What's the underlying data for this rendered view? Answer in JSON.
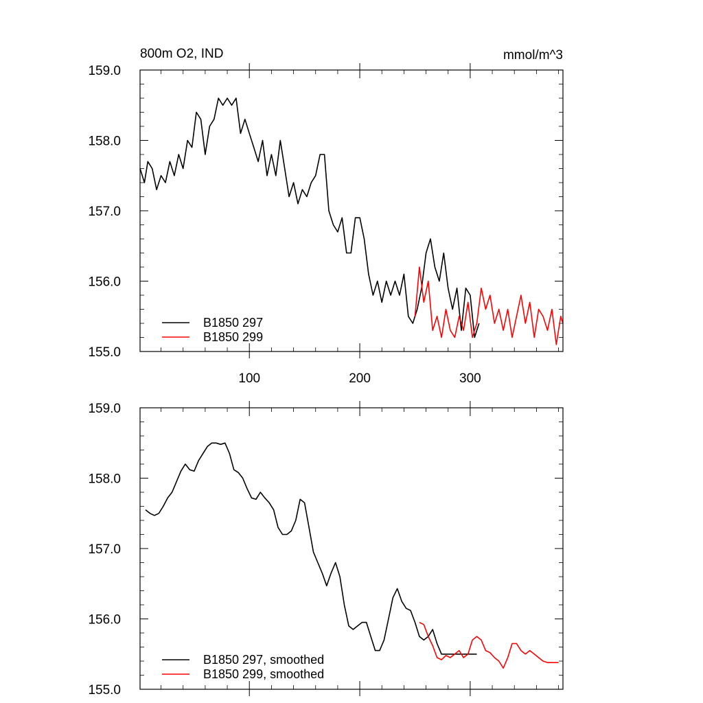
{
  "chart_data": [
    {
      "type": "line",
      "title_left": "800m O2, IND",
      "title_right": "mmol/m^3",
      "xlim": [
        1,
        384
      ],
      "ylim": [
        155.0,
        159.0
      ],
      "xticks": [
        100,
        200,
        300
      ],
      "xtick_labels": [
        "100",
        "200",
        "300"
      ],
      "yticks": [
        155.0,
        156.0,
        157.0,
        158.0,
        159.0
      ],
      "ytick_labels": [
        "155.0",
        "156.0",
        "157.0",
        "158.0",
        "159.0"
      ],
      "legend_position": "bottom-left",
      "series": [
        {
          "name": "B1850 297",
          "color": "#000000",
          "x": [
            1,
            5,
            8,
            12,
            16,
            20,
            24,
            28,
            32,
            36,
            40,
            44,
            48,
            52,
            56,
            60,
            64,
            68,
            72,
            76,
            80,
            84,
            88,
            92,
            96,
            100,
            104,
            108,
            112,
            116,
            120,
            124,
            128,
            132,
            136,
            140,
            144,
            148,
            152,
            156,
            160,
            164,
            168,
            172,
            176,
            180,
            184,
            188,
            192,
            196,
            200,
            204,
            208,
            212,
            216,
            220,
            224,
            228,
            232,
            236,
            240,
            244,
            248,
            252,
            256,
            260,
            264,
            268,
            272,
            276,
            280,
            284,
            288,
            292,
            296,
            300,
            304,
            308
          ],
          "y": [
            157.6,
            157.4,
            157.7,
            157.6,
            157.3,
            157.5,
            157.4,
            157.7,
            157.5,
            157.8,
            157.6,
            158.0,
            157.9,
            158.4,
            158.3,
            157.8,
            158.2,
            158.3,
            158.6,
            158.5,
            158.6,
            158.5,
            158.6,
            158.1,
            158.3,
            158.1,
            157.9,
            157.7,
            158.0,
            157.5,
            157.8,
            157.5,
            158.0,
            157.6,
            157.2,
            157.4,
            157.1,
            157.3,
            157.2,
            157.4,
            157.5,
            157.8,
            157.8,
            157.0,
            156.8,
            156.7,
            156.9,
            156.4,
            156.4,
            156.9,
            156.9,
            156.6,
            156.1,
            155.8,
            156.0,
            155.7,
            156.0,
            155.8,
            156.0,
            155.8,
            156.1,
            155.5,
            155.4,
            155.6,
            155.9,
            156.4,
            156.6,
            156.2,
            156.0,
            156.4,
            155.9,
            155.6,
            155.9,
            155.3,
            155.9,
            155.8,
            155.2,
            155.4
          ]
        },
        {
          "name": "B1850 299",
          "color": "#ff0000",
          "x": [
            250,
            254,
            258,
            262,
            266,
            270,
            274,
            278,
            282,
            286,
            290,
            294,
            298,
            302,
            306,
            310,
            314,
            318,
            322,
            326,
            330,
            334,
            338,
            342,
            346,
            350,
            354,
            358,
            362,
            366,
            370,
            374,
            378,
            382,
            384
          ],
          "y": [
            155.5,
            156.2,
            155.7,
            156.0,
            155.3,
            155.5,
            155.2,
            155.6,
            155.3,
            155.2,
            155.5,
            155.3,
            155.7,
            155.2,
            155.4,
            155.9,
            155.6,
            155.8,
            155.4,
            155.6,
            155.3,
            155.6,
            155.2,
            155.5,
            155.8,
            155.4,
            155.7,
            155.2,
            155.6,
            155.5,
            155.3,
            155.6,
            155.1,
            155.5,
            155.4
          ]
        }
      ]
    },
    {
      "type": "line",
      "xlim": [
        1,
        384
      ],
      "ylim": [
        155.0,
        159.0
      ],
      "yticks": [
        155.0,
        156.0,
        157.0,
        158.0,
        159.0
      ],
      "ytick_labels": [
        "155.0",
        "156.0",
        "157.0",
        "158.0",
        "159.0"
      ],
      "legend_position": "bottom-left",
      "series": [
        {
          "name": "B1850 297, smoothed",
          "color": "#000000",
          "x": [
            6,
            10,
            14,
            18,
            22,
            26,
            30,
            34,
            38,
            42,
            46,
            50,
            54,
            58,
            62,
            66,
            70,
            74,
            78,
            82,
            86,
            90,
            94,
            98,
            102,
            106,
            110,
            114,
            118,
            122,
            126,
            130,
            134,
            138,
            142,
            146,
            150,
            154,
            158,
            162,
            166,
            170,
            174,
            178,
            182,
            186,
            190,
            194,
            198,
            202,
            206,
            210,
            214,
            218,
            222,
            226,
            230,
            234,
            238,
            242,
            246,
            250,
            254,
            258,
            262,
            266,
            270,
            274,
            278,
            282,
            286,
            290,
            294,
            298,
            302,
            306
          ],
          "y": [
            157.55,
            157.5,
            157.47,
            157.5,
            157.6,
            157.72,
            157.8,
            157.95,
            158.1,
            158.2,
            158.12,
            158.1,
            158.25,
            158.35,
            158.45,
            158.5,
            158.5,
            158.48,
            158.5,
            158.35,
            158.12,
            158.08,
            158.0,
            157.85,
            157.72,
            157.7,
            157.8,
            157.72,
            157.65,
            157.55,
            157.3,
            157.2,
            157.2,
            157.25,
            157.4,
            157.7,
            157.65,
            157.3,
            156.95,
            156.8,
            156.65,
            156.47,
            156.65,
            156.8,
            156.6,
            156.2,
            155.9,
            155.85,
            155.9,
            155.95,
            155.95,
            155.75,
            155.55,
            155.55,
            155.7,
            156.0,
            156.3,
            156.43,
            156.25,
            156.15,
            156.12,
            155.95,
            155.75,
            155.7,
            155.75,
            155.85,
            155.65,
            155.5,
            155.5,
            155.5,
            155.5,
            155.5,
            155.5,
            155.5,
            155.5,
            155.5
          ]
        },
        {
          "name": "B1850 299, smoothed",
          "color": "#ff0000",
          "x": [
            254,
            258,
            262,
            266,
            270,
            274,
            278,
            282,
            286,
            290,
            294,
            298,
            302,
            306,
            310,
            314,
            318,
            322,
            326,
            330,
            334,
            338,
            342,
            346,
            350,
            354,
            358,
            362,
            366,
            370,
            374,
            378,
            380
          ],
          "y": [
            155.95,
            155.92,
            155.75,
            155.62,
            155.45,
            155.42,
            155.48,
            155.45,
            155.5,
            155.55,
            155.45,
            155.5,
            155.7,
            155.75,
            155.7,
            155.55,
            155.52,
            155.45,
            155.4,
            155.3,
            155.45,
            155.65,
            155.65,
            155.55,
            155.5,
            155.55,
            155.5,
            155.45,
            155.4,
            155.38,
            155.38,
            155.38,
            155.38
          ]
        }
      ]
    }
  ]
}
